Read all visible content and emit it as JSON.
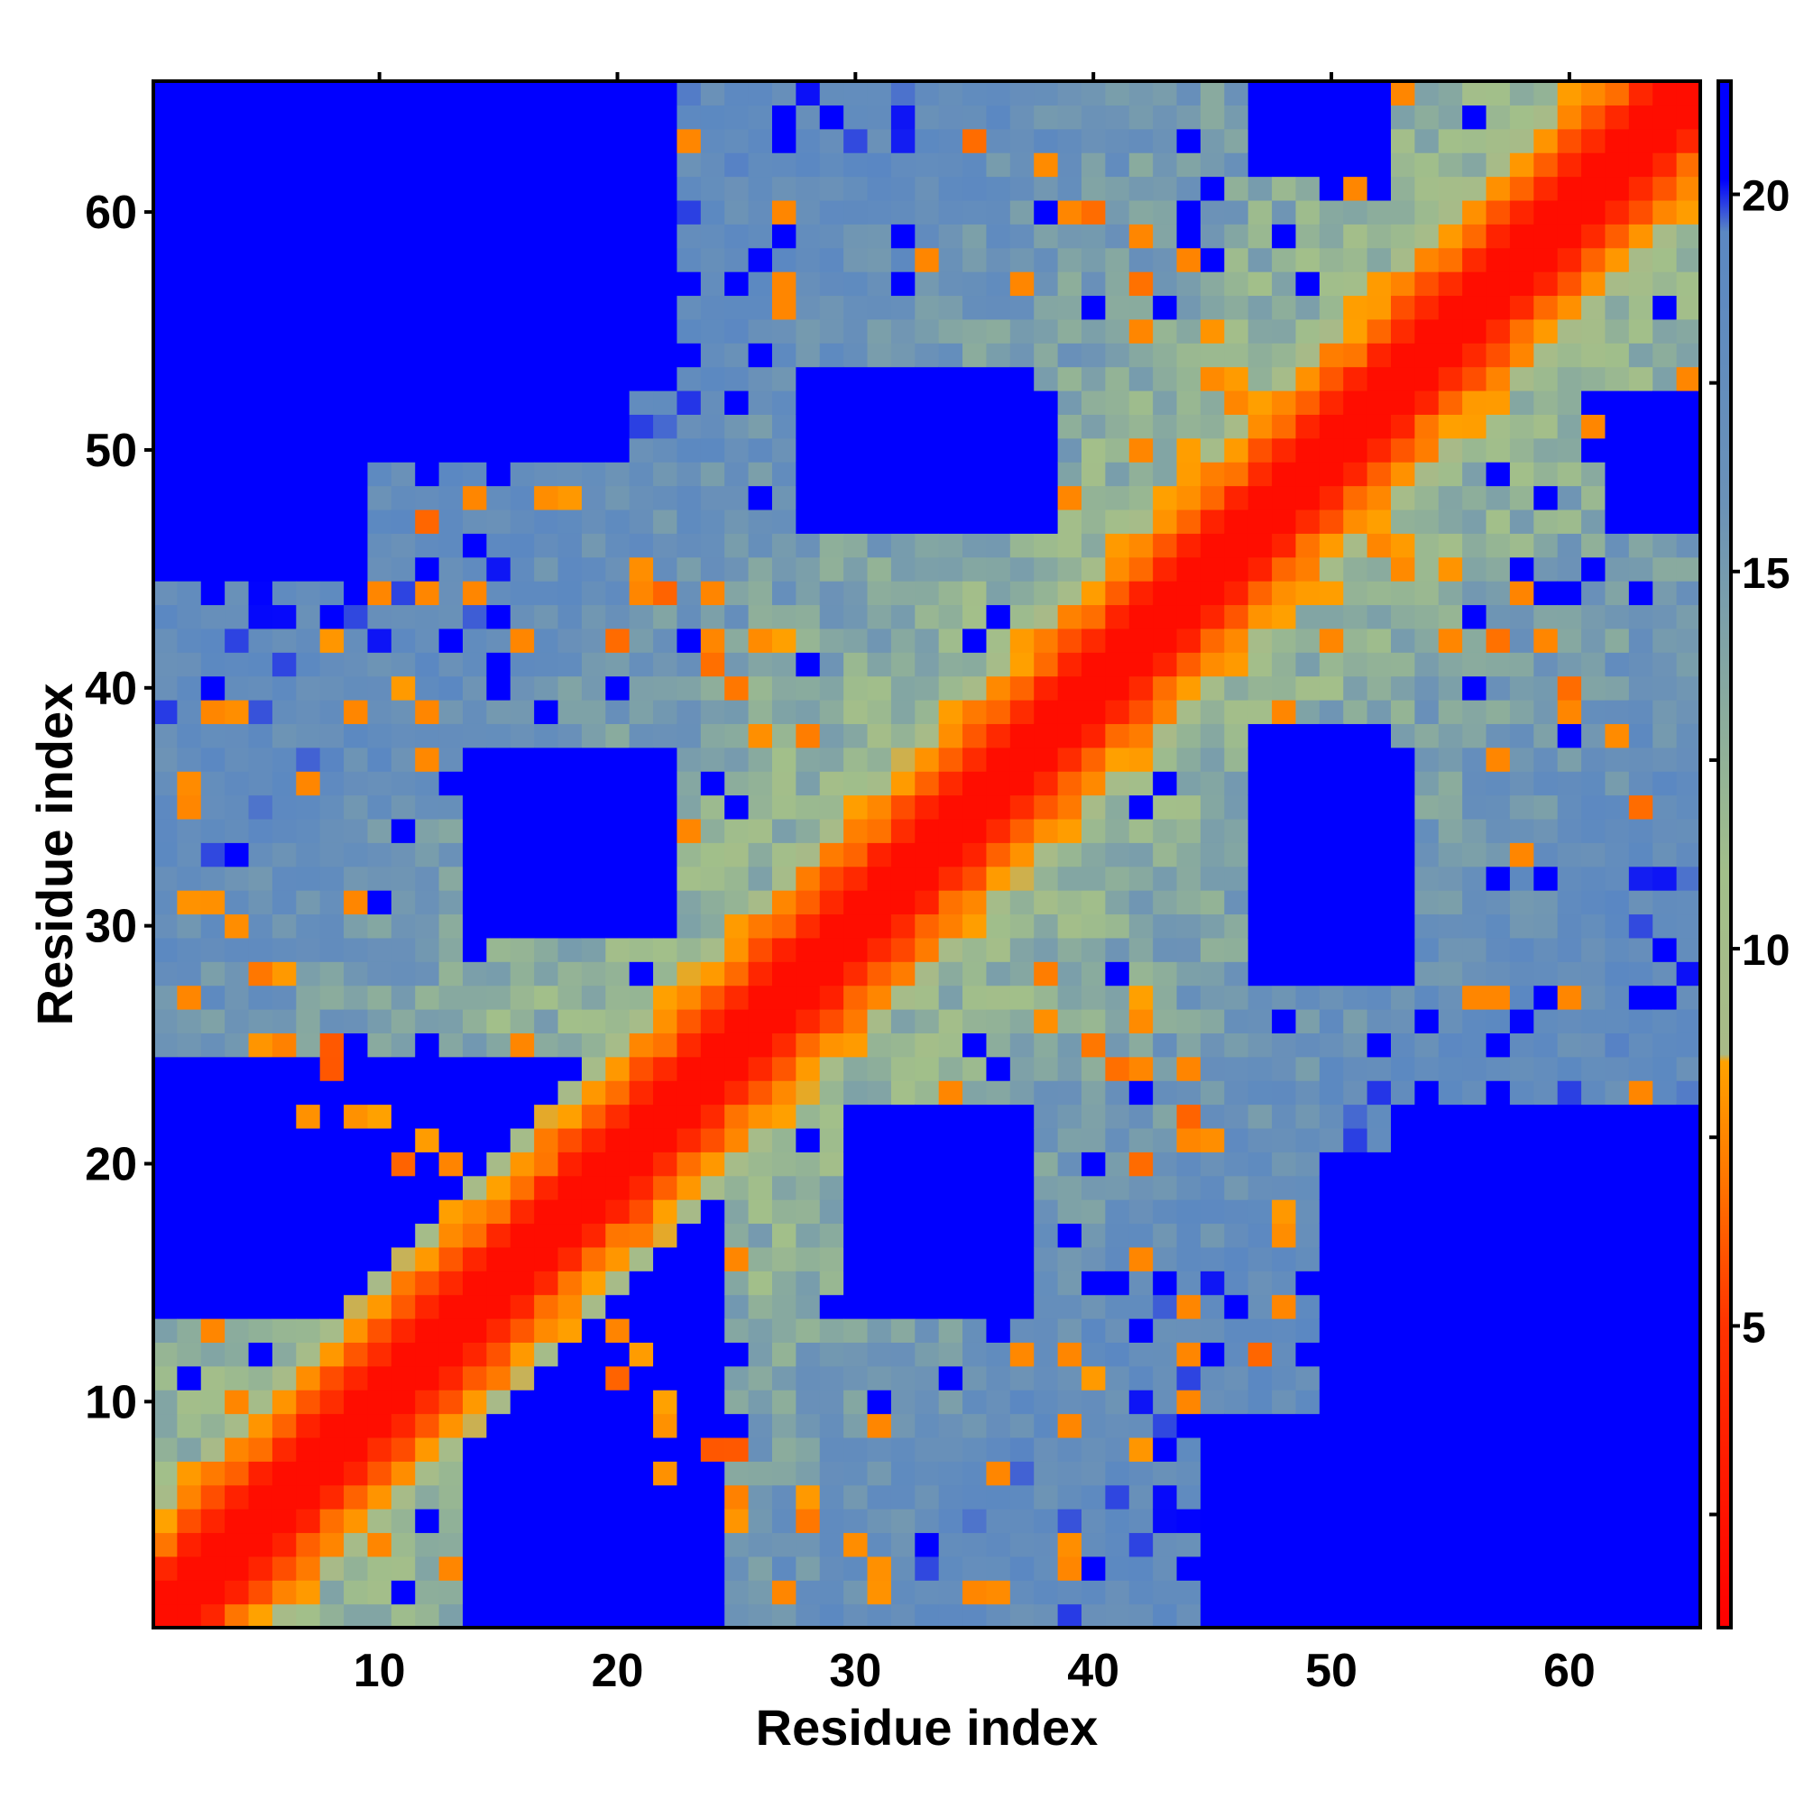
{
  "chart_data": {
    "type": "heatmap",
    "title": "",
    "xlabel": "Residue index",
    "ylabel": "Residue index",
    "n_residues": 65,
    "x_range": [
      1,
      65
    ],
    "y_range": [
      1,
      65
    ],
    "x_ticks": [
      "10",
      "20",
      "30",
      "40",
      "50",
      "60"
    ],
    "y_ticks": [
      "10",
      "20",
      "30",
      "40",
      "50",
      "60"
    ],
    "colorbar": {
      "ticks": [
        "5",
        "10",
        "15",
        "20"
      ],
      "range": [
        1,
        21.5
      ],
      "color_stops": [
        {
          "value": 1.0,
          "color": "#ff0000"
        },
        {
          "value": 5.0,
          "color": "#ff3300"
        },
        {
          "value": 7.0,
          "color": "#ff7800"
        },
        {
          "value": 8.5,
          "color": "#ffa200"
        },
        {
          "value": 8.6,
          "color": "#a8ba88"
        },
        {
          "value": 11.0,
          "color": "#a2bf8a"
        },
        {
          "value": 16.0,
          "color": "#6a91b8"
        },
        {
          "value": 19.5,
          "color": "#5b88c2"
        },
        {
          "value": 20.2,
          "color": "#0000ff"
        },
        {
          "value": 21.5,
          "color": "#0000ff"
        }
      ]
    },
    "grid": false,
    "legend": "colorbar-right",
    "structure": {
      "description_values": "symmetric contact distance map; red diagonal band, orange/yellow near-diagonal contacts, blue far regions",
      "blue_regions": [
        {
          "i": [
            1,
            9
          ],
          "j": [
            45,
            65
          ]
        },
        {
          "i": [
            14,
            24
          ],
          "j": [
            1,
            20
          ]
        },
        {
          "i": [
            14,
            22
          ],
          "j": [
            30,
            37
          ]
        },
        {
          "i": [
            47,
            52
          ],
          "j": [
            30,
            38
          ]
        },
        {
          "i": [
            53,
            65
          ],
          "j": [
            1,
            22
          ]
        },
        {
          "i": [
            30,
            36
          ],
          "j": [
            14,
            20
          ]
        },
        {
          "i": [
            28,
            37
          ],
          "j": [
            47,
            53
          ]
        },
        {
          "i": [
            10,
            20
          ],
          "j": [
            50,
            65
          ]
        },
        {
          "i": [
            47,
            50
          ],
          "j": [
            62,
            65
          ]
        },
        {
          "i": [
            62,
            65
          ],
          "j": [
            49,
            52
          ]
        }
      ],
      "off_diagonal_contacts": [
        [
          12,
          21
        ],
        [
          15,
          18
        ],
        [
          20,
          11
        ],
        [
          22,
          7
        ],
        [
          25,
          8
        ],
        [
          28,
          5
        ],
        [
          31,
          2
        ],
        [
          36,
          2
        ],
        [
          39,
          4
        ],
        [
          42,
          8
        ],
        [
          40,
          25
        ],
        [
          38,
          28
        ],
        [
          33,
          29
        ],
        [
          44,
          21
        ],
        [
          48,
          18
        ],
        [
          47,
          12
        ],
        [
          44,
          24
        ],
        [
          42,
          26
        ],
        [
          22,
          44
        ],
        [
          17,
          48
        ],
        [
          11,
          40
        ],
        [
          6,
          28
        ],
        [
          5,
          25
        ],
        [
          3,
          31
        ],
        [
          8,
          24
        ],
        [
          9,
          22
        ],
        [
          46,
          53
        ],
        [
          52,
          56
        ],
        [
          50,
          44
        ],
        [
          57,
          42
        ],
        [
          60,
          40
        ],
        [
          62,
          38
        ],
        [
          55,
          45
        ],
        [
          58,
          55
        ],
        [
          44,
          58
        ],
        [
          40,
          60
        ],
        [
          38,
          62
        ],
        [
          35,
          63
        ],
        [
          42,
          55
        ],
        [
          45,
          53
        ],
        [
          26,
          38
        ],
        [
          27,
          42
        ],
        [
          24,
          41
        ],
        [
          21,
          45
        ],
        [
          20,
          42
        ],
        [
          12,
          37
        ],
        [
          6,
          25
        ],
        [
          4,
          30
        ],
        [
          13,
          20
        ],
        [
          10,
          22
        ]
      ]
    }
  }
}
